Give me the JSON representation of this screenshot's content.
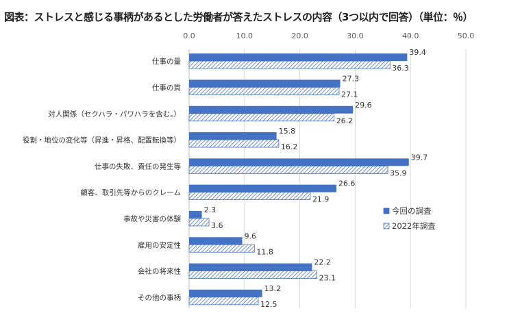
{
  "chart_data": {
    "type": "bar",
    "orientation": "horizontal",
    "title": "図表：ストレスと感じる事柄があるとした労働者が答えたストレスの内容（3つ以内で回答）（単位：％）",
    "categories": [
      "仕事の量",
      "仕事の質",
      "対人関係（セクハラ・パワハラを含む。）",
      "役割・地位の変化等（昇進・昇格、配置転換等）",
      "仕事の失敗、責任の発生等",
      "顧客、取引先等からのクレーム",
      "事故や災害の体験",
      "雇用の安定性",
      "会社の将来性",
      "その他の事柄"
    ],
    "series": [
      {
        "name": "今回の調査",
        "values": [
          39.4,
          27.3,
          29.6,
          15.8,
          39.7,
          26.6,
          2.3,
          9.6,
          22.2,
          13.2
        ],
        "color": "#4472C4",
        "pattern": "solid"
      },
      {
        "name": "2022年調査",
        "values": [
          36.3,
          27.1,
          26.2,
          16.2,
          35.9,
          21.9,
          3.6,
          11.8,
          23.1,
          12.5
        ],
        "color": "#4472C4",
        "pattern": "hatched"
      }
    ],
    "xlim": [
      0,
      50
    ],
    "xticks": [
      "0.0",
      "10.0",
      "20.0",
      "30.0",
      "40.0",
      "50.0"
    ],
    "axis_position": "top",
    "grid": true,
    "legend": "right"
  }
}
